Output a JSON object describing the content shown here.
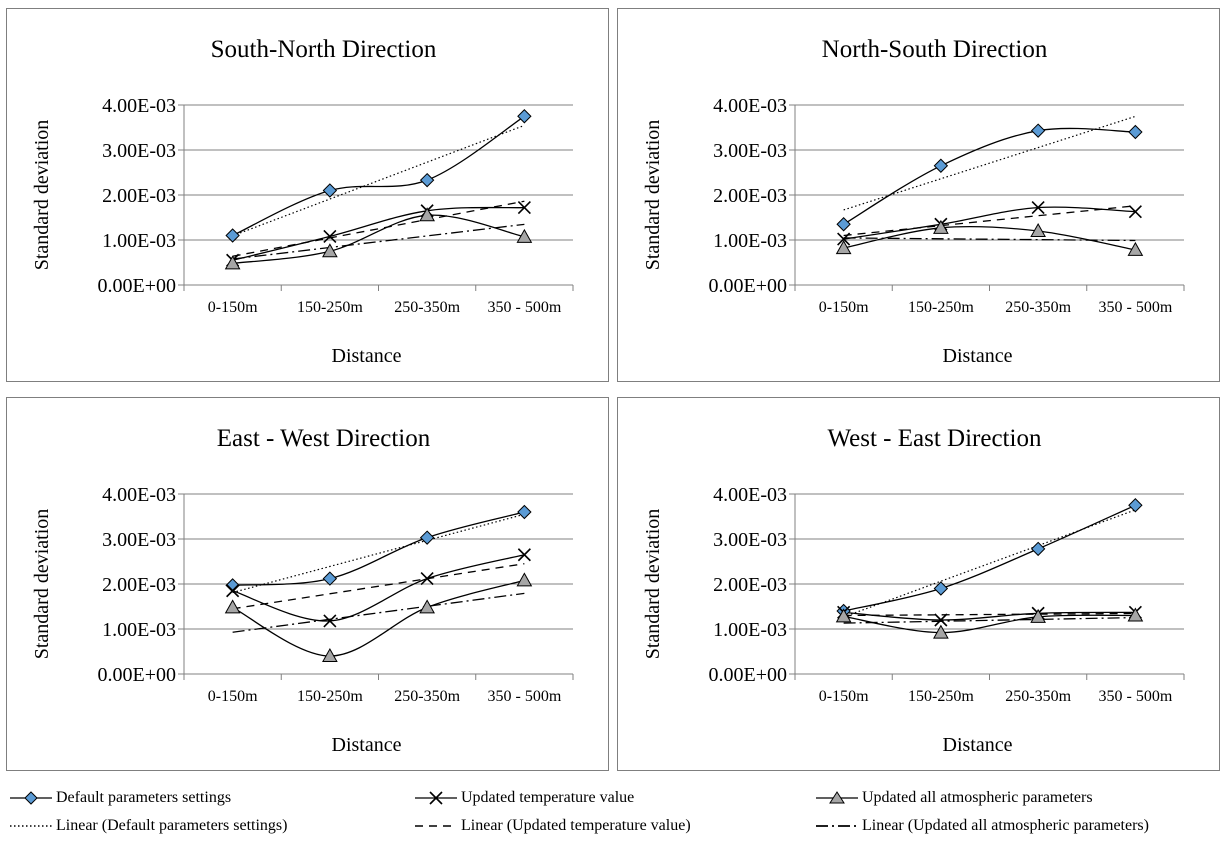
{
  "chart_data": [
    {
      "type": "line",
      "title": "South-North Direction",
      "xlabel": "Distance",
      "ylabel": "Standard deviation",
      "categories": [
        "0-150m",
        "150-250m",
        "250-350m",
        "350 - 500m"
      ],
      "ylim": [
        0,
        0.004
      ],
      "yticks": [
        "0.00E+00",
        "1.00E-03",
        "2.00E-03",
        "3.00E-03",
        "4.00E-03"
      ],
      "grid": true,
      "series": [
        {
          "name": "Default parameters settings",
          "values": [
            0.0011,
            0.0021,
            0.00233,
            0.00375
          ]
        },
        {
          "name": "Updated temperature value",
          "values": [
            0.00055,
            0.00108,
            0.00165,
            0.00172
          ]
        },
        {
          "name": "Updated all atmospheric parameters",
          "values": [
            0.00048,
            0.00075,
            0.00155,
            0.00107
          ]
        }
      ]
    },
    {
      "type": "line",
      "title": "North-South Direction",
      "xlabel": "Distance",
      "ylabel": "Standard deviation",
      "categories": [
        "0-150m",
        "150-250m",
        "250-350m",
        "350 - 500m"
      ],
      "ylim": [
        0,
        0.004
      ],
      "yticks": [
        "0.00E+00",
        "1.00E-03",
        "2.00E-03",
        "3.00E-03",
        "4.00E-03"
      ],
      "grid": true,
      "series": [
        {
          "name": "Default parameters settings",
          "values": [
            0.00135,
            0.00265,
            0.00343,
            0.0034
          ]
        },
        {
          "name": "Updated temperature value",
          "values": [
            0.00102,
            0.00135,
            0.00172,
            0.00163
          ]
        },
        {
          "name": "Updated all atmospheric parameters",
          "values": [
            0.00082,
            0.00127,
            0.0012,
            0.00078
          ]
        }
      ]
    },
    {
      "type": "line",
      "title": "East - West Direction",
      "xlabel": "Distance",
      "ylabel": "Standard deviation",
      "categories": [
        "0-150m",
        "150-250m",
        "250-350m",
        "350 - 500m"
      ],
      "ylim": [
        0,
        0.004
      ],
      "yticks": [
        "0.00E+00",
        "1.00E-03",
        "2.00E-03",
        "3.00E-03",
        "4.00E-03"
      ],
      "grid": true,
      "series": [
        {
          "name": "Default parameters settings",
          "values": [
            0.00197,
            0.00212,
            0.00303,
            0.0036
          ]
        },
        {
          "name": "Updated temperature value",
          "values": [
            0.00185,
            0.00118,
            0.00212,
            0.00265
          ]
        },
        {
          "name": "Updated all atmospheric parameters",
          "values": [
            0.00148,
            0.0004,
            0.00148,
            0.00208
          ]
        }
      ]
    },
    {
      "type": "line",
      "title": "West - East Direction",
      "xlabel": "Distance",
      "ylabel": "Standard deviation",
      "categories": [
        "0-150m",
        "150-250m",
        "250-350m",
        "350 - 500m"
      ],
      "ylim": [
        0,
        0.004
      ],
      "yticks": [
        "0.00E+00",
        "1.00E-03",
        "2.00E-03",
        "3.00E-03",
        "4.00E-03"
      ],
      "grid": true,
      "series": [
        {
          "name": "Default parameters settings",
          "values": [
            0.0014,
            0.0019,
            0.00278,
            0.00375
          ]
        },
        {
          "name": "Updated temperature value",
          "values": [
            0.00137,
            0.0012,
            0.00135,
            0.00137
          ]
        },
        {
          "name": "Updated all atmospheric parameters",
          "values": [
            0.00128,
            0.00092,
            0.00127,
            0.0013
          ]
        }
      ]
    }
  ],
  "legend": {
    "placement": "bottom",
    "entries": [
      {
        "label": "Default parameters settings",
        "marker": "diamond",
        "line": "solid"
      },
      {
        "label": "Updated temperature value",
        "marker": "cross",
        "line": "solid"
      },
      {
        "label": "Updated all atmospheric parameters",
        "marker": "triangle",
        "line": "solid"
      },
      {
        "label": "Linear (Default parameters settings)",
        "marker": "none",
        "line": "dotted"
      },
      {
        "label": "Linear (Updated temperature value)",
        "marker": "none",
        "line": "dashed"
      },
      {
        "label": "Linear (Updated all atmospheric parameters)",
        "marker": "none",
        "line": "dash-dot"
      }
    ]
  },
  "colors": {
    "diamond_fill": "#5b9bd5",
    "triangle_fill": "#a6a6a6",
    "line": "#000000",
    "grid": "#808080",
    "border": "#7f7f7f"
  }
}
